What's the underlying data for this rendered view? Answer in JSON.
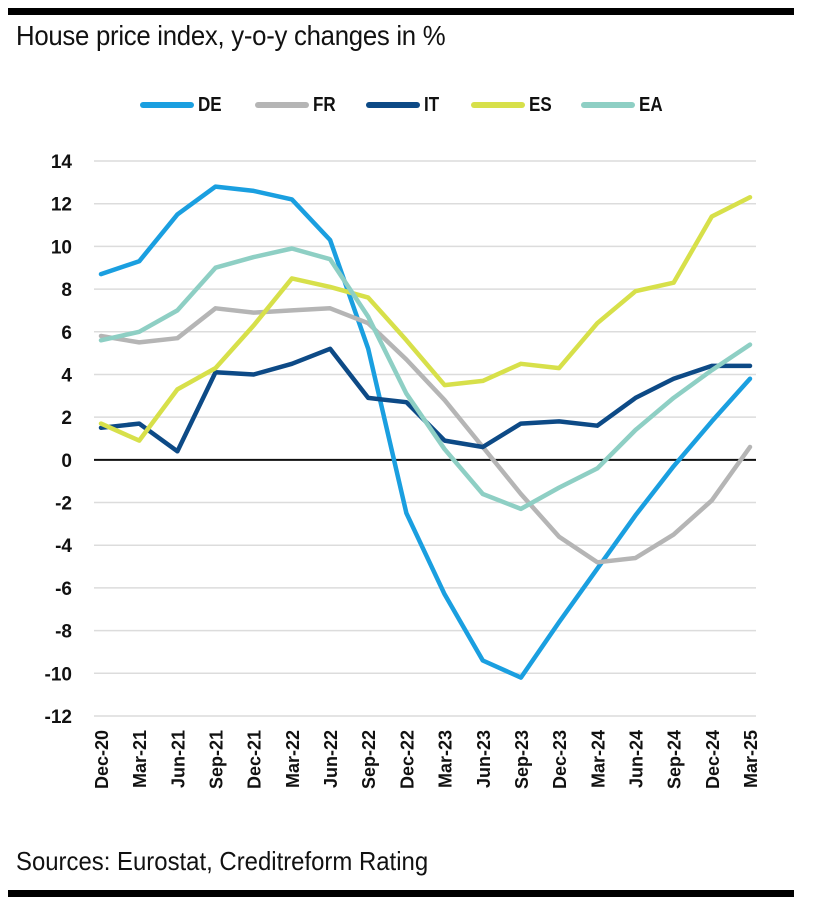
{
  "title": "House price index, y-o-y changes in %",
  "source": "Sources: Eurostat, Creditreform Rating",
  "chart_data": {
    "type": "line",
    "title": "House price index, y-o-y changes in %",
    "xlabel": "",
    "ylabel": "",
    "ylim": [
      -12,
      14
    ],
    "yticks": [
      14,
      12,
      10,
      8,
      6,
      4,
      2,
      0,
      -2,
      -4,
      -6,
      -8,
      -10,
      -12
    ],
    "grid": true,
    "legend_position": "top-center",
    "categories": [
      "Dec-20",
      "Mar-21",
      "Jun-21",
      "Sep-21",
      "Dec-21",
      "Mar-22",
      "Jun-22",
      "Sep-22",
      "Dec-22",
      "Mar-23",
      "Jun-23",
      "Sep-23",
      "Dec-23",
      "Mar-24",
      "Jun-24",
      "Sep-24",
      "Dec-24",
      "Mar-25"
    ],
    "series": [
      {
        "name": "DE",
        "color": "#1a9fe0",
        "values": [
          8.7,
          9.3,
          11.5,
          12.8,
          12.6,
          12.2,
          10.3,
          5.2,
          -2.5,
          -6.3,
          -9.4,
          -10.2,
          -7.6,
          -5.1,
          -2.6,
          -0.3,
          1.8,
          3.8
        ]
      },
      {
        "name": "FR",
        "color": "#b5b5b5",
        "values": [
          5.8,
          5.5,
          5.7,
          7.1,
          6.9,
          7.0,
          7.1,
          6.4,
          4.7,
          2.8,
          0.6,
          -1.6,
          -3.6,
          -4.8,
          -4.6,
          -3.5,
          -1.9,
          0.6
        ]
      },
      {
        "name": "IT",
        "color": "#0d4a86",
        "values": [
          1.5,
          1.7,
          0.4,
          4.1,
          4.0,
          4.5,
          5.2,
          2.9,
          2.7,
          0.9,
          0.6,
          1.7,
          1.8,
          1.6,
          2.9,
          3.8,
          4.4,
          4.4
        ]
      },
      {
        "name": "ES",
        "color": "#d7e04a",
        "values": [
          1.7,
          0.9,
          3.3,
          4.3,
          6.3,
          8.5,
          8.1,
          7.6,
          5.6,
          3.5,
          3.7,
          4.5,
          4.3,
          6.4,
          7.9,
          8.3,
          11.4,
          12.3
        ]
      },
      {
        "name": "EA",
        "color": "#8ecfc4",
        "values": [
          5.6,
          6.0,
          7.0,
          9.0,
          9.5,
          9.9,
          9.4,
          6.7,
          3.1,
          0.5,
          -1.6,
          -2.3,
          -1.3,
          -0.4,
          1.4,
          2.9,
          4.2,
          5.4
        ]
      }
    ]
  }
}
